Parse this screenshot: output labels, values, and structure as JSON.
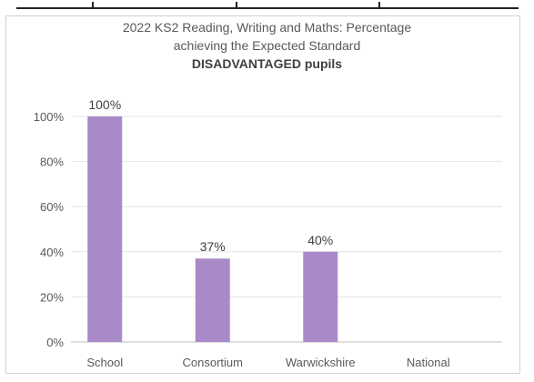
{
  "chart_data": {
    "type": "bar",
    "title_lines": [
      "2022 KS2 Reading, Writing and Maths: Percentage",
      "achieving the Expected Standard",
      "DISADVANTAGED pupils"
    ],
    "categories": [
      "School",
      "Consortium",
      "Warwickshire",
      "National"
    ],
    "values": [
      100,
      37,
      40,
      null
    ],
    "data_labels": [
      "100%",
      "37%",
      "40%",
      ""
    ],
    "y_ticks": [
      "0%",
      "20%",
      "40%",
      "60%",
      "80%",
      "100%"
    ],
    "ylim": [
      0,
      100
    ],
    "grid": true,
    "bar_color": "#a98ac9"
  }
}
